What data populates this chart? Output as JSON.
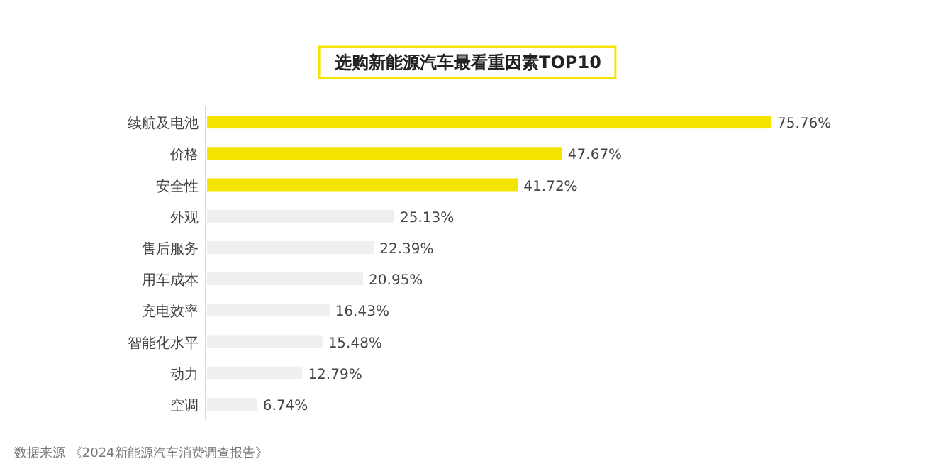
{
  "chart_data": {
    "type": "bar",
    "orientation": "horizontal",
    "title": "选购新能源汽车最看重因素TOP10",
    "categories": [
      "续航及电池",
      "价格",
      "安全性",
      "外观",
      "售后服务",
      "用车成本",
      "充电效率",
      "智能化水平",
      "动力",
      "空调"
    ],
    "values": [
      75.76,
      47.67,
      41.72,
      25.13,
      22.39,
      20.95,
      16.43,
      15.48,
      12.79,
      6.74
    ],
    "colors": [
      "#f5e300",
      "#f5e300",
      "#f5e300",
      "#efefef",
      "#efefef",
      "#efefef",
      "#efefef",
      "#efefef",
      "#efefef",
      "#efefef"
    ],
    "value_labels": [
      "75.76%",
      "47.67%",
      "41.72%",
      "25.13%",
      "22.39%",
      "20.95%",
      "16.43%",
      "15.48%",
      "12.79%",
      "6.74%"
    ],
    "annotations": [
      "数据来源  《2024新能源汽车消费调查报告》"
    ]
  }
}
